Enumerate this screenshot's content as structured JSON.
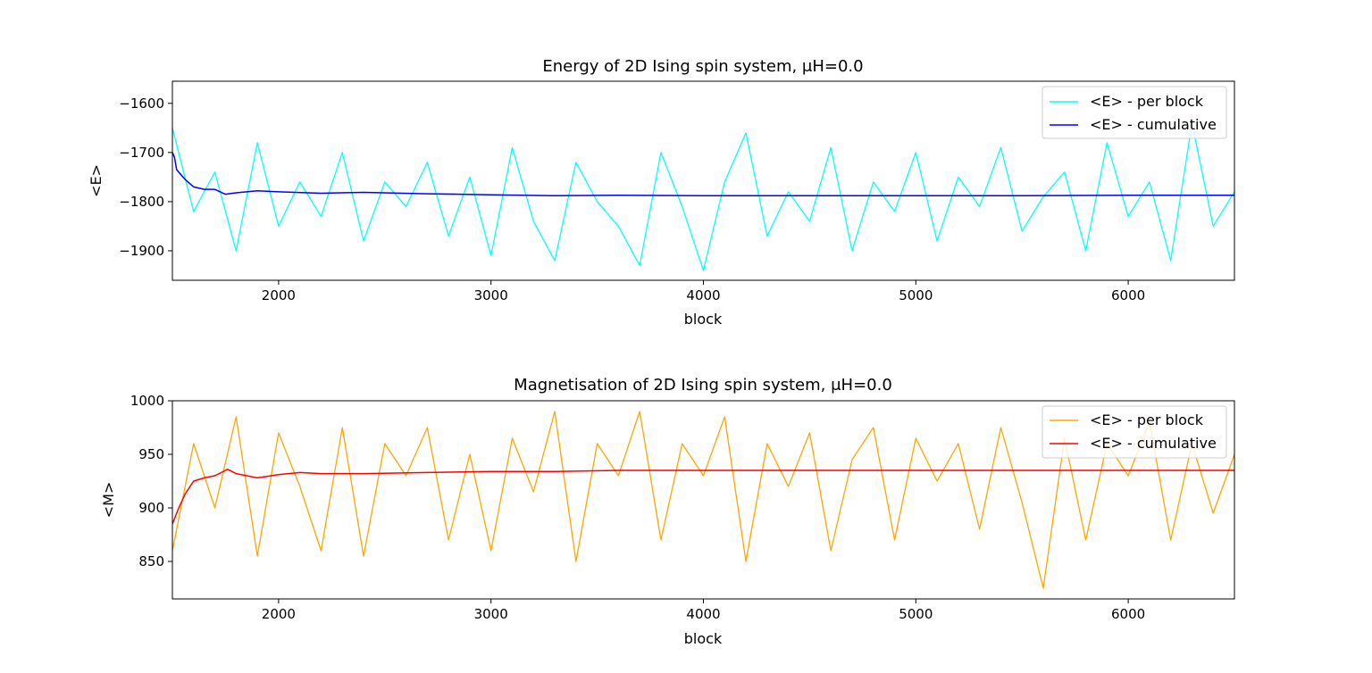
{
  "chart_data": [
    {
      "type": "line",
      "title": "Energy of 2D Ising spin system, μH=0.0",
      "xlabel": "block",
      "ylabel": "<E>",
      "xlim": [
        1500,
        6500
      ],
      "ylim": [
        -1960,
        -1555
      ],
      "x_ticks": [
        2000,
        3000,
        4000,
        5000,
        6000
      ],
      "x_tick_labels": [
        "2000",
        "3000",
        "4000",
        "5000",
        "6000"
      ],
      "y_ticks": [
        -1600,
        -1700,
        -1800,
        -1900
      ],
      "y_tick_labels": [
        "−1600",
        "−1700",
        "−1800",
        "−1900"
      ],
      "legend_position": "top-right",
      "grid": false,
      "series": [
        {
          "name": "<E> - per block",
          "color": "#00ffff",
          "x": [
            1500,
            1600,
            1700,
            1800,
            1900,
            2000,
            2100,
            2200,
            2300,
            2400,
            2500,
            2600,
            2700,
            2800,
            2900,
            3000,
            3100,
            3200,
            3300,
            3400,
            3500,
            3600,
            3700,
            3800,
            3900,
            4000,
            4100,
            4200,
            4300,
            4400,
            4500,
            4600,
            4700,
            4800,
            4900,
            5000,
            5100,
            5200,
            5300,
            5400,
            5500,
            5600,
            5700,
            5800,
            5900,
            6000,
            6100,
            6200,
            6300,
            6400,
            6500
          ],
          "y": [
            -1650,
            -1820,
            -1740,
            -1900,
            -1680,
            -1850,
            -1760,
            -1830,
            -1700,
            -1880,
            -1760,
            -1810,
            -1720,
            -1870,
            -1750,
            -1910,
            -1690,
            -1840,
            -1920,
            -1720,
            -1800,
            -1850,
            -1930,
            -1700,
            -1810,
            -1940,
            -1760,
            -1660,
            -1870,
            -1780,
            -1840,
            -1690,
            -1900,
            -1760,
            -1820,
            -1700,
            -1880,
            -1750,
            -1810,
            -1690,
            -1860,
            -1790,
            -1740,
            -1900,
            -1680,
            -1830,
            -1760,
            -1920,
            -1640,
            -1850,
            -1780
          ]
        },
        {
          "name": "<E> - cumulative",
          "color": "#0000ff",
          "x": [
            1500,
            1510,
            1520,
            1540,
            1560,
            1600,
            1650,
            1700,
            1750,
            1800,
            1900,
            2000,
            2200,
            2400,
            2700,
            3000,
            3300,
            3600,
            4000,
            4500,
            5000,
            5500,
            6000,
            6500
          ],
          "y": [
            -1700,
            -1710,
            -1735,
            -1745,
            -1755,
            -1770,
            -1775,
            -1775,
            -1785,
            -1782,
            -1778,
            -1780,
            -1783,
            -1781,
            -1784,
            -1786,
            -1788,
            -1787,
            -1788,
            -1788,
            -1788,
            -1788,
            -1787,
            -1787
          ]
        }
      ]
    },
    {
      "type": "line",
      "title": "Magnetisation of 2D Ising spin system, μH=0.0",
      "xlabel": "block",
      "ylabel": "<M>",
      "xlim": [
        1500,
        6500
      ],
      "ylim": [
        815,
        1000
      ],
      "x_ticks": [
        2000,
        3000,
        4000,
        5000,
        6000
      ],
      "x_tick_labels": [
        "2000",
        "3000",
        "4000",
        "5000",
        "6000"
      ],
      "y_ticks": [
        1000,
        950,
        900,
        850
      ],
      "y_tick_labels": [
        "1000",
        "950",
        "900",
        "850"
      ],
      "legend_position": "top-right",
      "grid": false,
      "series": [
        {
          "name": "<E> - per block",
          "color": "#ffa500",
          "x": [
            1500,
            1600,
            1700,
            1800,
            1900,
            2000,
            2100,
            2200,
            2300,
            2400,
            2500,
            2600,
            2700,
            2800,
            2900,
            3000,
            3100,
            3200,
            3300,
            3400,
            3500,
            3600,
            3700,
            3800,
            3900,
            4000,
            4100,
            4200,
            4300,
            4400,
            4500,
            4600,
            4700,
            4800,
            4900,
            5000,
            5100,
            5200,
            5300,
            5400,
            5500,
            5600,
            5700,
            5800,
            5900,
            6000,
            6100,
            6200,
            6300,
            6400,
            6500
          ],
          "y": [
            860,
            960,
            900,
            985,
            855,
            970,
            920,
            860,
            975,
            855,
            960,
            930,
            975,
            870,
            950,
            860,
            965,
            915,
            990,
            850,
            960,
            930,
            990,
            870,
            960,
            930,
            985,
            850,
            960,
            920,
            970,
            860,
            945,
            975,
            870,
            965,
            925,
            960,
            880,
            975,
            905,
            825,
            965,
            870,
            960,
            930,
            980,
            870,
            960,
            895,
            950
          ]
        },
        {
          "name": "<E> - cumulative",
          "color": "#ff0000",
          "x": [
            1500,
            1510,
            1530,
            1560,
            1600,
            1650,
            1700,
            1760,
            1800,
            1900,
            2000,
            2100,
            2200,
            2400,
            2700,
            3000,
            3300,
            3600,
            4000,
            4500,
            5000,
            5500,
            6000,
            6500
          ],
          "y": [
            885,
            890,
            900,
            913,
            925,
            928,
            930,
            936,
            932,
            928,
            931,
            933,
            932,
            932,
            933,
            934,
            934,
            935,
            935,
            935,
            935,
            935,
            935,
            935
          ]
        }
      ]
    }
  ]
}
